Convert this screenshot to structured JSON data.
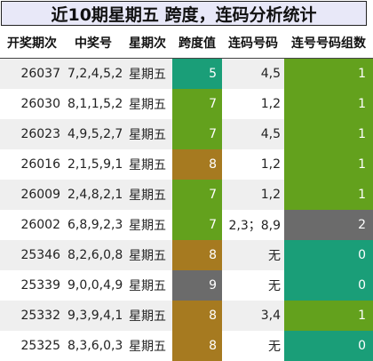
{
  "title": "近10期星期五 跨度，连码分析统计",
  "headers": [
    "开奖期次",
    "中奖号",
    "星期次",
    "跨度值",
    "连码号码",
    "连号号码组数"
  ],
  "colors": {
    "span_5": "#1a9e78",
    "span_7": "#63a11d",
    "span_8": "#a67a20",
    "span_9": "#6b6b6b",
    "groups_0": "#1a9e78",
    "groups_1": "#63a11d",
    "groups_2": "#6b6b6b"
  },
  "rows": [
    {
      "period": "26037",
      "numbers": "7,2,4,5,2",
      "weekday": "星期五",
      "span": "5",
      "consecutive": "4,5",
      "groups": "1"
    },
    {
      "period": "26030",
      "numbers": "8,1,1,5,2",
      "weekday": "星期五",
      "span": "7",
      "consecutive": "1,2",
      "groups": "1"
    },
    {
      "period": "26023",
      "numbers": "4,9,5,2,7",
      "weekday": "星期五",
      "span": "7",
      "consecutive": "4,5",
      "groups": "1"
    },
    {
      "period": "26016",
      "numbers": "2,1,5,9,1",
      "weekday": "星期五",
      "span": "8",
      "consecutive": "1,2",
      "groups": "1"
    },
    {
      "period": "26009",
      "numbers": "2,4,8,2,1",
      "weekday": "星期五",
      "span": "7",
      "consecutive": "1,2",
      "groups": "1"
    },
    {
      "period": "26002",
      "numbers": "6,8,9,2,3",
      "weekday": "星期五",
      "span": "7",
      "consecutive": "2,3；8,9",
      "groups": "2"
    },
    {
      "period": "25346",
      "numbers": "8,2,6,0,8",
      "weekday": "星期五",
      "span": "8",
      "consecutive": "无",
      "groups": "0"
    },
    {
      "period": "25339",
      "numbers": "9,0,0,4,9",
      "weekday": "星期五",
      "span": "9",
      "consecutive": "无",
      "groups": "0"
    },
    {
      "period": "25332",
      "numbers": "9,3,9,4,1",
      "weekday": "星期五",
      "span": "8",
      "consecutive": "3,4",
      "groups": "1"
    },
    {
      "period": "25325",
      "numbers": "8,3,6,0,3",
      "weekday": "星期五",
      "span": "8",
      "consecutive": "无",
      "groups": "0"
    }
  ]
}
